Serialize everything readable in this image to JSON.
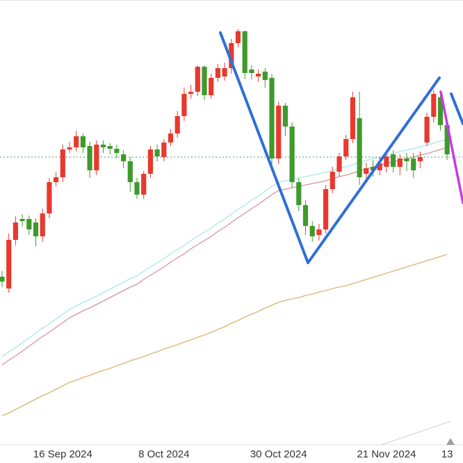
{
  "chart_data": {
    "type": "candlestick",
    "categories": [
      null,
      null,
      null,
      null,
      null,
      null,
      null,
      null,
      null,
      "16 Sep 2024",
      null,
      null,
      null,
      null,
      null,
      null,
      null,
      null,
      null,
      null,
      null,
      null,
      null,
      null,
      "8 Oct 2024",
      null,
      null,
      null,
      null,
      null,
      null,
      null,
      null,
      null,
      null,
      null,
      null,
      null,
      null,
      null,
      null,
      "30 Oct 2024",
      null,
      null,
      null,
      null,
      null,
      null,
      null,
      null,
      null,
      null,
      null,
      null,
      null,
      null,
      null,
      "21 Nov 2024",
      null,
      null,
      null,
      null,
      null,
      null,
      null,
      null,
      "13"
    ],
    "open": [
      268,
      251,
      321,
      351,
      351,
      346,
      326,
      359,
      404,
      411,
      451,
      454,
      470,
      456,
      421,
      458,
      456,
      452,
      444,
      434,
      404,
      386,
      416,
      451,
      440,
      461,
      474,
      499,
      531,
      534,
      570,
      529,
      554,
      556,
      568,
      604,
      621,
      566,
      556,
      563,
      554,
      438,
      514,
      484,
      404,
      371,
      341,
      328,
      336,
      394,
      419,
      441,
      466,
      496,
      416,
      426,
      421,
      426,
      444,
      426,
      438,
      438,
      434,
      461,
      498,
      526,
      486
    ],
    "high": [
      276,
      330,
      355,
      358,
      356,
      352,
      366,
      410,
      418,
      458,
      462,
      478,
      474,
      462,
      464,
      464,
      460,
      458,
      450,
      440,
      410,
      420,
      456,
      458,
      466,
      480,
      506,
      540,
      544,
      572,
      572,
      560,
      574,
      576,
      610,
      624,
      622,
      572,
      566,
      568,
      560,
      520,
      518,
      490,
      410,
      378,
      348,
      344,
      400,
      426,
      446,
      472,
      534,
      534,
      432,
      436,
      440,
      446,
      450,
      444,
      446,
      446,
      448,
      504,
      536,
      532,
      492
    ],
    "low": [
      253,
      245,
      313,
      340,
      328,
      312,
      318,
      352,
      398,
      404,
      446,
      448,
      446,
      410,
      414,
      446,
      444,
      438,
      424,
      390,
      380,
      380,
      410,
      434,
      434,
      456,
      468,
      492,
      524,
      528,
      522,
      524,
      548,
      550,
      560,
      598,
      552,
      552,
      548,
      540,
      430,
      430,
      470,
      396,
      362,
      328,
      318,
      320,
      330,
      388,
      412,
      436,
      460,
      400,
      408,
      412,
      414,
      418,
      418,
      414,
      420,
      410,
      424,
      456,
      490,
      478,
      436
    ],
    "close": [
      261,
      321,
      346,
      348,
      336,
      326,
      359,
      404,
      411,
      451,
      454,
      470,
      454,
      421,
      458,
      454,
      452,
      446,
      434,
      404,
      386,
      416,
      451,
      441,
      461,
      474,
      499,
      531,
      534,
      570,
      529,
      554,
      568,
      568,
      604,
      621,
      561,
      561,
      560,
      551,
      438,
      514,
      484,
      404,
      371,
      341,
      326,
      336,
      394,
      419,
      441,
      466,
      526,
      411,
      424,
      421,
      431,
      441,
      426,
      438,
      434,
      421,
      440,
      498,
      531,
      486,
      444
    ],
    "up_color": "#e8392f",
    "down_color": "#3f9a2c",
    "lines": [
      {
        "color": "#a6e6ef",
        "values": [
          153,
          160,
          166,
          173,
          180,
          187,
          194,
          200,
          207,
          214,
          221,
          226,
          231,
          235,
          240,
          245,
          250,
          255,
          260,
          265,
          269,
          276,
          282,
          288,
          294,
          301,
          307,
          313,
          320,
          326,
          332,
          338,
          345,
          351,
          358,
          365,
          371,
          378,
          384,
          391,
          398,
          404,
          406,
          408,
          410,
          412,
          414,
          416,
          418,
          421,
          424,
          426,
          429,
          432,
          435,
          438,
          440,
          443,
          445,
          448,
          450,
          452,
          455,
          457,
          460,
          463,
          466
        ]
      },
      {
        "color": "#d99297",
        "values": [
          141,
          148,
          154,
          161,
          168,
          175,
          182,
          188,
          195,
          202,
          209,
          214,
          219,
          223,
          228,
          233,
          238,
          243,
          248,
          253,
          257,
          264,
          270,
          276,
          282,
          289,
          295,
          301,
          308,
          314,
          320,
          326,
          333,
          339,
          346,
          353,
          359,
          366,
          372,
          379,
          386,
          392,
          394,
          396,
          398,
          400,
          402,
          404,
          406,
          409,
          412,
          414,
          417,
          420,
          423,
          426,
          428,
          431,
          433,
          436,
          438,
          440,
          443,
          445,
          448,
          451,
          454
        ]
      },
      {
        "color": "#dbb56e",
        "values": [
          68,
          72,
          77,
          82,
          87,
          92,
          97,
          101,
          106,
          111,
          116,
          119,
          123,
          126,
          130,
          133,
          136,
          140,
          143,
          147,
          150,
          153,
          157,
          160,
          164,
          167,
          170,
          174,
          177,
          181,
          184,
          188,
          192,
          196,
          201,
          205,
          210,
          214,
          218,
          223,
          227,
          231,
          234,
          236,
          238,
          241,
          243,
          246,
          248,
          251,
          253,
          255,
          258,
          261,
          264,
          267,
          270,
          273,
          276,
          279,
          282,
          285,
          288,
          291,
          294,
          297,
          300
        ]
      }
    ],
    "price_line": 440,
    "price_line_color": "#3f9a7a",
    "ylim": [
      0,
      666
    ]
  }
}
